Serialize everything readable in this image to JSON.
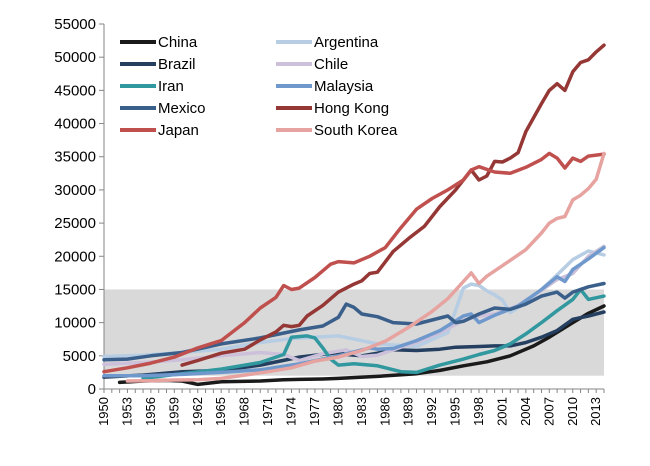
{
  "chart_data": {
    "type": "line",
    "title": "",
    "xlabel": "",
    "ylabel": "",
    "ylim": [
      0,
      55000
    ],
    "yticks": [
      0,
      5000,
      10000,
      15000,
      20000,
      25000,
      30000,
      35000,
      40000,
      45000,
      50000,
      55000
    ],
    "xlim": [
      1950,
      2014
    ],
    "xticks": [
      1950,
      1953,
      1956,
      1959,
      1962,
      1965,
      1968,
      1971,
      1974,
      1977,
      1980,
      1983,
      1986,
      1989,
      1992,
      1995,
      1998,
      2001,
      2004,
      2007,
      2010,
      2013
    ],
    "shaded_band": {
      "ymin": 2000,
      "ymax": 15000,
      "color": "#d9d9d9"
    },
    "legend_position": "top",
    "series": [
      {
        "name": "China",
        "color": "#1a1a1a",
        "points": [
          [
            1952,
            1000
          ],
          [
            1955,
            1200
          ],
          [
            1958,
            1300
          ],
          [
            1960,
            1200
          ],
          [
            1962,
            700
          ],
          [
            1965,
            1100
          ],
          [
            1970,
            1200
          ],
          [
            1973,
            1400
          ],
          [
            1975,
            1450
          ],
          [
            1978,
            1500
          ],
          [
            1980,
            1600
          ],
          [
            1985,
            1900
          ],
          [
            1990,
            2300
          ],
          [
            1993,
            2800
          ],
          [
            1996,
            3500
          ],
          [
            1999,
            4100
          ],
          [
            2002,
            5000
          ],
          [
            2005,
            6500
          ],
          [
            2007,
            7800
          ],
          [
            2010,
            10000
          ],
          [
            2012,
            11400
          ],
          [
            2014,
            12500
          ]
        ]
      },
      {
        "name": "Argentina",
        "color": "#b7cde3",
        "points": [
          [
            1950,
            4900
          ],
          [
            1955,
            5100
          ],
          [
            1960,
            5500
          ],
          [
            1965,
            6000
          ],
          [
            1970,
            7000
          ],
          [
            1974,
            7600
          ],
          [
            1980,
            8000
          ],
          [
            1985,
            6800
          ],
          [
            1990,
            6400
          ],
          [
            1994,
            8500
          ],
          [
            1996,
            15200
          ],
          [
            1997,
            15800
          ],
          [
            1998,
            15600
          ],
          [
            1999,
            14800
          ],
          [
            2000,
            14200
          ],
          [
            2001,
            13400
          ],
          [
            2002,
            11500
          ],
          [
            2004,
            13000
          ],
          [
            2006,
            15000
          ],
          [
            2008,
            17200
          ],
          [
            2010,
            19500
          ],
          [
            2012,
            20800
          ],
          [
            2014,
            20200
          ]
        ]
      },
      {
        "name": "Brazil",
        "color": "#243f60",
        "points": [
          [
            1950,
            1800
          ],
          [
            1955,
            2100
          ],
          [
            1960,
            2600
          ],
          [
            1965,
            2800
          ],
          [
            1970,
            3600
          ],
          [
            1975,
            4800
          ],
          [
            1980,
            5500
          ],
          [
            1981,
            5200
          ],
          [
            1983,
            5000
          ],
          [
            1985,
            5400
          ],
          [
            1987,
            5900
          ],
          [
            1990,
            5800
          ],
          [
            1993,
            6000
          ],
          [
            1995,
            6300
          ],
          [
            1998,
            6400
          ],
          [
            2000,
            6500
          ],
          [
            2002,
            6500
          ],
          [
            2004,
            7000
          ],
          [
            2006,
            7800
          ],
          [
            2008,
            8800
          ],
          [
            2010,
            10500
          ],
          [
            2012,
            11000
          ],
          [
            2014,
            11600
          ]
        ]
      },
      {
        "name": "Chile",
        "color": "#ccc0da",
        "points": [
          [
            1950,
            3700
          ],
          [
            1955,
            4000
          ],
          [
            1960,
            4400
          ],
          [
            1965,
            5000
          ],
          [
            1970,
            5500
          ],
          [
            1973,
            5200
          ],
          [
            1975,
            4300
          ],
          [
            1978,
            5300
          ],
          [
            1981,
            5900
          ],
          [
            1983,
            4900
          ],
          [
            1985,
            5100
          ],
          [
            1988,
            6300
          ],
          [
            1990,
            7000
          ],
          [
            1993,
            8500
          ],
          [
            1996,
            10300
          ],
          [
            1998,
            11000
          ],
          [
            2000,
            11300
          ],
          [
            2003,
            12600
          ],
          [
            2006,
            14900
          ],
          [
            2008,
            16500
          ],
          [
            2010,
            17400
          ],
          [
            2012,
            20000
          ],
          [
            2014,
            21500
          ]
        ]
      },
      {
        "name": "Iran",
        "color": "#31989f",
        "points": [
          [
            1955,
            1600
          ],
          [
            1960,
            2300
          ],
          [
            1965,
            3000
          ],
          [
            1970,
            4000
          ],
          [
            1973,
            5200
          ],
          [
            1974,
            7800
          ],
          [
            1976,
            8000
          ],
          [
            1977,
            7700
          ],
          [
            1978,
            6200
          ],
          [
            1979,
            4500
          ],
          [
            1980,
            3600
          ],
          [
            1982,
            3800
          ],
          [
            1985,
            3500
          ],
          [
            1988,
            2600
          ],
          [
            1990,
            2500
          ],
          [
            1993,
            3600
          ],
          [
            1996,
            4500
          ],
          [
            1998,
            5200
          ],
          [
            2000,
            5800
          ],
          [
            2002,
            6800
          ],
          [
            2004,
            8300
          ],
          [
            2006,
            10000
          ],
          [
            2008,
            11800
          ],
          [
            2010,
            13500
          ],
          [
            2011,
            15000
          ],
          [
            2012,
            13500
          ],
          [
            2014,
            14000
          ]
        ]
      },
      {
        "name": "Malaysia",
        "color": "#6f99cc",
        "points": [
          [
            1950,
            2000
          ],
          [
            1955,
            2000
          ],
          [
            1960,
            2200
          ],
          [
            1965,
            2500
          ],
          [
            1970,
            2900
          ],
          [
            1975,
            3800
          ],
          [
            1980,
            5000
          ],
          [
            1984,
            6200
          ],
          [
            1985,
            6000
          ],
          [
            1987,
            6100
          ],
          [
            1990,
            7300
          ],
          [
            1993,
            8800
          ],
          [
            1996,
            11000
          ],
          [
            1997,
            11300
          ],
          [
            1998,
            10000
          ],
          [
            2000,
            11100
          ],
          [
            2003,
            12500
          ],
          [
            2006,
            15000
          ],
          [
            2008,
            16900
          ],
          [
            2009,
            16200
          ],
          [
            2010,
            18000
          ],
          [
            2012,
            19600
          ],
          [
            2014,
            21300
          ]
        ]
      },
      {
        "name": "Mexico",
        "color": "#3a5f8a",
        "points": [
          [
            1950,
            4400
          ],
          [
            1953,
            4500
          ],
          [
            1956,
            5000
          ],
          [
            1960,
            5500
          ],
          [
            1965,
            6800
          ],
          [
            1970,
            7700
          ],
          [
            1975,
            8900
          ],
          [
            1978,
            9500
          ],
          [
            1980,
            10800
          ],
          [
            1981,
            12800
          ],
          [
            1982,
            12300
          ],
          [
            1983,
            11300
          ],
          [
            1985,
            10900
          ],
          [
            1987,
            10000
          ],
          [
            1990,
            9800
          ],
          [
            1993,
            10700
          ],
          [
            1994,
            11000
          ],
          [
            1995,
            10000
          ],
          [
            1996,
            10200
          ],
          [
            1998,
            11300
          ],
          [
            2000,
            12200
          ],
          [
            2002,
            12000
          ],
          [
            2004,
            12800
          ],
          [
            2006,
            14000
          ],
          [
            2008,
            14600
          ],
          [
            2009,
            13700
          ],
          [
            2010,
            14600
          ],
          [
            2012,
            15400
          ],
          [
            2014,
            15900
          ]
        ]
      },
      {
        "name": "Hong Kong",
        "color": "#953735",
        "points": [
          [
            1960,
            3600
          ],
          [
            1962,
            4300
          ],
          [
            1965,
            5400
          ],
          [
            1968,
            6000
          ],
          [
            1970,
            7400
          ],
          [
            1972,
            8600
          ],
          [
            1973,
            9600
          ],
          [
            1974,
            9400
          ],
          [
            1975,
            9600
          ],
          [
            1976,
            11000
          ],
          [
            1978,
            12600
          ],
          [
            1980,
            14600
          ],
          [
            1982,
            15800
          ],
          [
            1983,
            16300
          ],
          [
            1984,
            17400
          ],
          [
            1985,
            17600
          ],
          [
            1987,
            20700
          ],
          [
            1989,
            22700
          ],
          [
            1991,
            24500
          ],
          [
            1993,
            27500
          ],
          [
            1995,
            30000
          ],
          [
            1997,
            33000
          ],
          [
            1998,
            31500
          ],
          [
            1999,
            32100
          ],
          [
            2000,
            34300
          ],
          [
            2001,
            34200
          ],
          [
            2002,
            34800
          ],
          [
            2003,
            35600
          ],
          [
            2004,
            38800
          ],
          [
            2006,
            43000
          ],
          [
            2007,
            45000
          ],
          [
            2008,
            46000
          ],
          [
            2009,
            45000
          ],
          [
            2010,
            47800
          ],
          [
            2011,
            49200
          ],
          [
            2012,
            49600
          ],
          [
            2013,
            50800
          ],
          [
            2014,
            51800
          ]
        ]
      },
      {
        "name": "Japan",
        "color": "#c0504d",
        "points": [
          [
            1950,
            2600
          ],
          [
            1953,
            3200
          ],
          [
            1956,
            3900
          ],
          [
            1959,
            4800
          ],
          [
            1962,
            6200
          ],
          [
            1965,
            7300
          ],
          [
            1968,
            10000
          ],
          [
            1970,
            12200
          ],
          [
            1972,
            13800
          ],
          [
            1973,
            15600
          ],
          [
            1974,
            15000
          ],
          [
            1975,
            15200
          ],
          [
            1977,
            16800
          ],
          [
            1979,
            18800
          ],
          [
            1980,
            19200
          ],
          [
            1982,
            19000
          ],
          [
            1984,
            20000
          ],
          [
            1986,
            21300
          ],
          [
            1988,
            24300
          ],
          [
            1990,
            27100
          ],
          [
            1992,
            28700
          ],
          [
            1994,
            30000
          ],
          [
            1996,
            31500
          ],
          [
            1997,
            33000
          ],
          [
            1998,
            33500
          ],
          [
            2000,
            32700
          ],
          [
            2002,
            32500
          ],
          [
            2004,
            33400
          ],
          [
            2006,
            34600
          ],
          [
            2007,
            35500
          ],
          [
            2008,
            34800
          ],
          [
            2009,
            33300
          ],
          [
            2010,
            34800
          ],
          [
            2011,
            34300
          ],
          [
            2012,
            35100
          ],
          [
            2014,
            35400
          ]
        ]
      },
      {
        "name": "South Korea",
        "color": "#e6a3a0",
        "points": [
          [
            1953,
            1200
          ],
          [
            1956,
            1250
          ],
          [
            1959,
            1350
          ],
          [
            1962,
            1400
          ],
          [
            1965,
            1600
          ],
          [
            1968,
            2100
          ],
          [
            1971,
            2600
          ],
          [
            1974,
            3200
          ],
          [
            1977,
            4200
          ],
          [
            1980,
            4800
          ],
          [
            1983,
            5800
          ],
          [
            1986,
            7200
          ],
          [
            1989,
            9300
          ],
          [
            1992,
            11700
          ],
          [
            1994,
            13600
          ],
          [
            1996,
            16200
          ],
          [
            1997,
            17500
          ],
          [
            1998,
            15900
          ],
          [
            1999,
            17000
          ],
          [
            2000,
            17800
          ],
          [
            2002,
            19400
          ],
          [
            2004,
            21000
          ],
          [
            2006,
            23500
          ],
          [
            2007,
            25000
          ],
          [
            2008,
            25700
          ],
          [
            2009,
            26000
          ],
          [
            2010,
            28500
          ],
          [
            2011,
            29200
          ],
          [
            2012,
            30200
          ],
          [
            2013,
            31600
          ],
          [
            2014,
            35500
          ]
        ]
      }
    ]
  }
}
